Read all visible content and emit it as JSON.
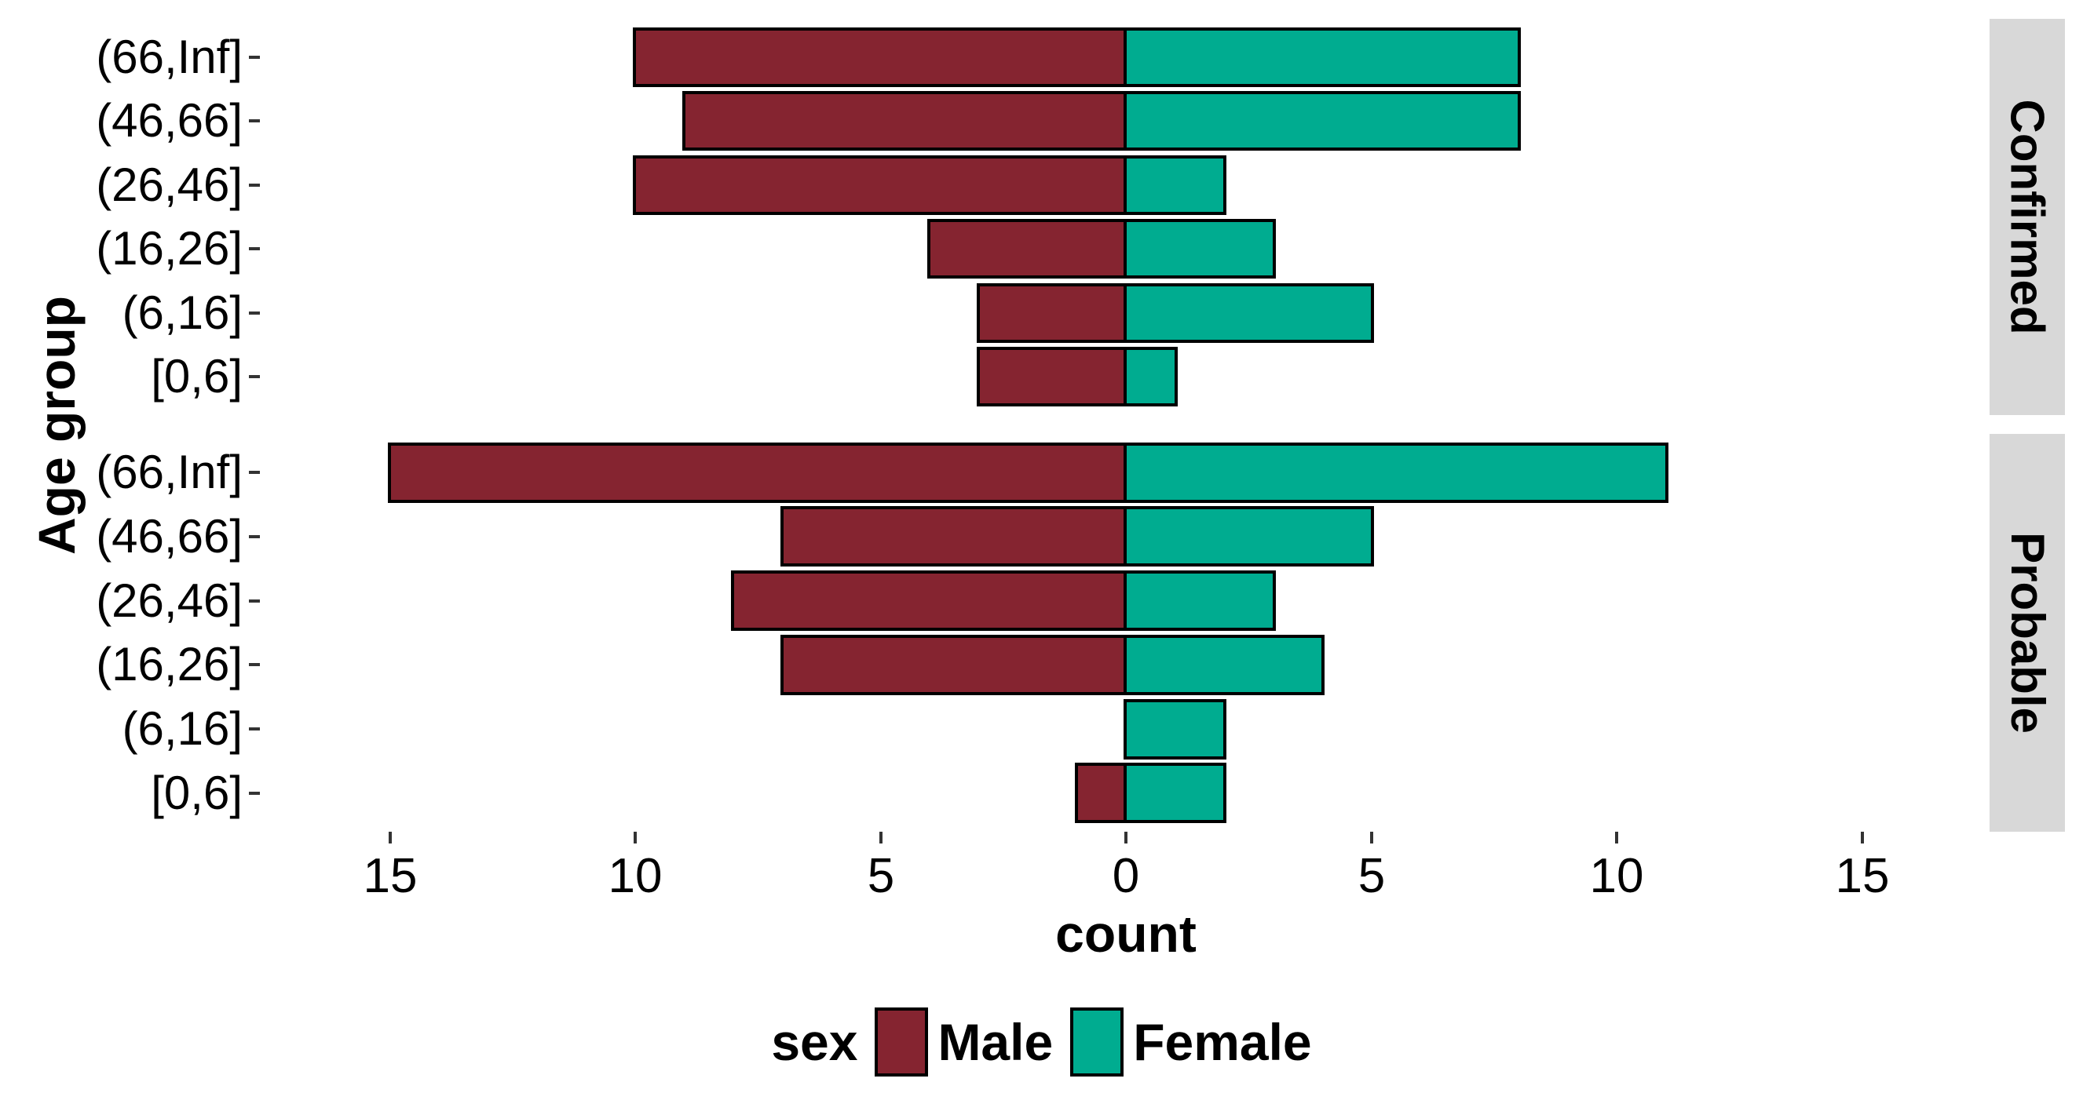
{
  "axis": {
    "y_title": "Age group",
    "x_title": "count",
    "x_tick_labels": [
      "15",
      "10",
      "5",
      "0",
      "5",
      "10",
      "15"
    ],
    "y_tick_labels": [
      "(66,Inf]",
      "(46,66]",
      "(26,46]",
      "(16,26]",
      "(6,16]",
      "[0,6]"
    ]
  },
  "facets": [
    {
      "label": "Confirmed",
      "rows": [
        {
          "group": "(66,Inf]",
          "male": 10,
          "female": 8
        },
        {
          "group": "(46,66]",
          "male": 9,
          "female": 8
        },
        {
          "group": "(26,46]",
          "male": 10,
          "female": 2
        },
        {
          "group": "(16,26]",
          "male": 4,
          "female": 3
        },
        {
          "group": "(6,16]",
          "male": 3,
          "female": 5
        },
        {
          "group": "[0,6]",
          "male": 3,
          "female": 1
        }
      ]
    },
    {
      "label": "Probable",
      "rows": [
        {
          "group": "(66,Inf]",
          "male": 15,
          "female": 11
        },
        {
          "group": "(46,66]",
          "male": 7,
          "female": 5
        },
        {
          "group": "(26,46]",
          "male": 8,
          "female": 3
        },
        {
          "group": "(16,26]",
          "male": 7,
          "female": 4
        },
        {
          "group": "(6,16]",
          "male": 0,
          "female": 2
        },
        {
          "group": "[0,6]",
          "male": 1,
          "female": 2
        }
      ]
    }
  ],
  "legend": {
    "title": "sex",
    "items": [
      {
        "label": "Male",
        "color": "#852430"
      },
      {
        "label": "Female",
        "color": "#00AC90"
      }
    ]
  },
  "colors": {
    "male": "#852430",
    "female": "#00AC90",
    "bar_border": "#000000",
    "strip_bg": "#D8D8D8",
    "tick_mark": "#333333",
    "text": "#000000"
  },
  "chart_data": {
    "type": "bar",
    "subtype": "population_pyramid",
    "orientation": "horizontal",
    "title": "",
    "xlabel": "count",
    "ylabel": "Age group",
    "x_tick_labels": [
      "15",
      "10",
      "5",
      "0",
      "5",
      "10",
      "15"
    ],
    "xlim": [
      -17.65,
      17.65
    ],
    "grid": false,
    "legend_position": "bottom",
    "legend_title": "sex",
    "series_note": "Male values plotted leftward from zero, Female rightward",
    "facets": [
      {
        "label": "Confirmed",
        "categories": [
          "(66,Inf]",
          "(46,66]",
          "(26,46]",
          "(16,26]",
          "(6,16]",
          "[0,6]"
        ],
        "series": [
          {
            "name": "Male",
            "color": "#852430",
            "values": [
              10,
              9,
              10,
              4,
              3,
              3
            ]
          },
          {
            "name": "Female",
            "color": "#00AC90",
            "values": [
              8,
              8,
              2,
              3,
              5,
              1
            ]
          }
        ]
      },
      {
        "label": "Probable",
        "categories": [
          "(66,Inf]",
          "(46,66]",
          "(26,46]",
          "(16,26]",
          "(6,16]",
          "[0,6]"
        ],
        "series": [
          {
            "name": "Male",
            "color": "#852430",
            "values": [
              15,
              7,
              8,
              7,
              0,
              1
            ]
          },
          {
            "name": "Female",
            "color": "#00AC90",
            "values": [
              11,
              5,
              3,
              4,
              2,
              2
            ]
          }
        ]
      }
    ]
  }
}
